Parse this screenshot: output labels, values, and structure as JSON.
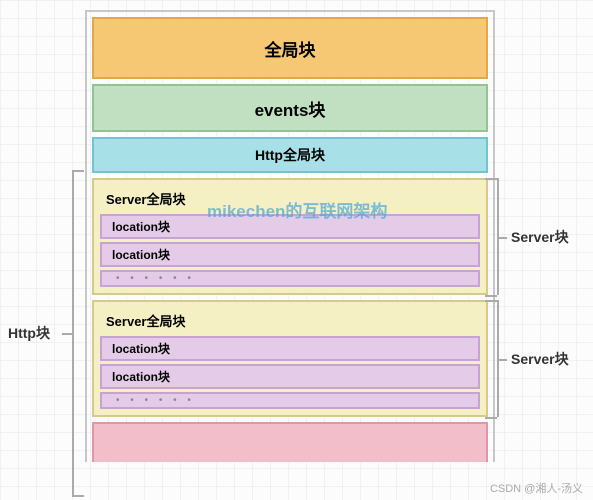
{
  "colors": {
    "outer_border": "#c7c7c7",
    "global_bg": "#f7c873",
    "global_border": "#e0a84b",
    "events_bg": "#c1e0c1",
    "events_border": "#92c492",
    "httpglobal_bg": "#a8e0e8",
    "httpglobal_border": "#73c3d1",
    "server_outer_bg": "#f5f0c4",
    "server_outer_border": "#d6ca88",
    "serverglobal_bg": "#f5f0c4",
    "serverglobal_border": "#d6ca88",
    "location_bg": "#e4cce8",
    "location_border": "#c7a3d1",
    "bottom_bg": "#f2bec9",
    "bottom_border": "#e096a8",
    "watermark_color": "#4da6d9"
  },
  "labels": {
    "global": "全局块",
    "events": "events块",
    "http_global": "Http全局块",
    "server_global": "Server全局块",
    "location": "location块",
    "http_block": "Http块",
    "server_block": "Server块",
    "dots": "• • • • • •"
  },
  "watermark": "mikechen的互联网架构",
  "footer": "CSDN @湘人-汤义",
  "fontsize": {
    "big": 17,
    "med": 14,
    "small": 13,
    "tiny": 12
  }
}
